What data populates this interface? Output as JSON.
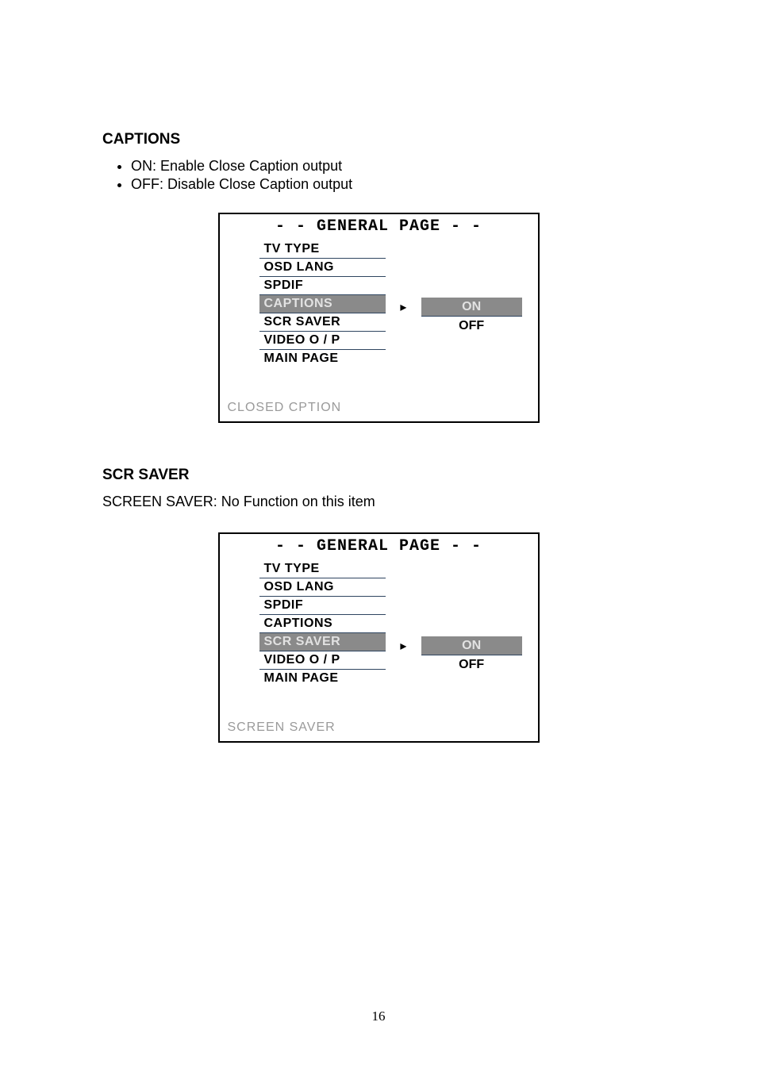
{
  "page_number": "16",
  "section1": {
    "heading": "CAPTIONS",
    "bullets": [
      "ON: Enable Close Caption output",
      "OFF: Disable Close Caption output"
    ],
    "osd": {
      "title": "- -   GENERAL  PAGE   - -",
      "menu": [
        {
          "label": "TV TYPE",
          "selected": false
        },
        {
          "label": "OSD LANG",
          "selected": false
        },
        {
          "label": "SPDIF",
          "selected": false
        },
        {
          "label": "CAPTIONS",
          "selected": true
        },
        {
          "label": "SCR SAVER",
          "selected": false
        },
        {
          "label": "VIDEO O / P",
          "selected": false
        },
        {
          "label": "MAIN PAGE",
          "selected": false
        }
      ],
      "pointer_index": 3,
      "options_start_index": 3,
      "options": [
        {
          "label": "ON",
          "selected": true
        },
        {
          "label": "OFF",
          "selected": false
        }
      ],
      "description": "CLOSED CPTION"
    }
  },
  "section2": {
    "heading": "SCR SAVER",
    "description": "SCREEN SAVER: No Function on this item",
    "osd": {
      "title": "- -   GENERAL  PAGE   - -",
      "menu": [
        {
          "label": "TV TYPE",
          "selected": false
        },
        {
          "label": "OSD LANG",
          "selected": false
        },
        {
          "label": "SPDIF",
          "selected": false
        },
        {
          "label": "CAPTIONS",
          "selected": false
        },
        {
          "label": "SCR SAVER",
          "selected": true
        },
        {
          "label": "VIDEO O / P",
          "selected": false
        },
        {
          "label": "MAIN PAGE",
          "selected": false
        }
      ],
      "pointer_index": 4,
      "options_start_index": 4,
      "options": [
        {
          "label": "ON",
          "selected": true
        },
        {
          "label": "OFF",
          "selected": false
        }
      ],
      "description": "SCREEN SAVER"
    }
  },
  "colors": {
    "selected_bg": "#8a8a8a",
    "selected_fg": "#e2e2e2",
    "menu_border": "#2f4560",
    "desc_color": "#9a9a9a"
  }
}
